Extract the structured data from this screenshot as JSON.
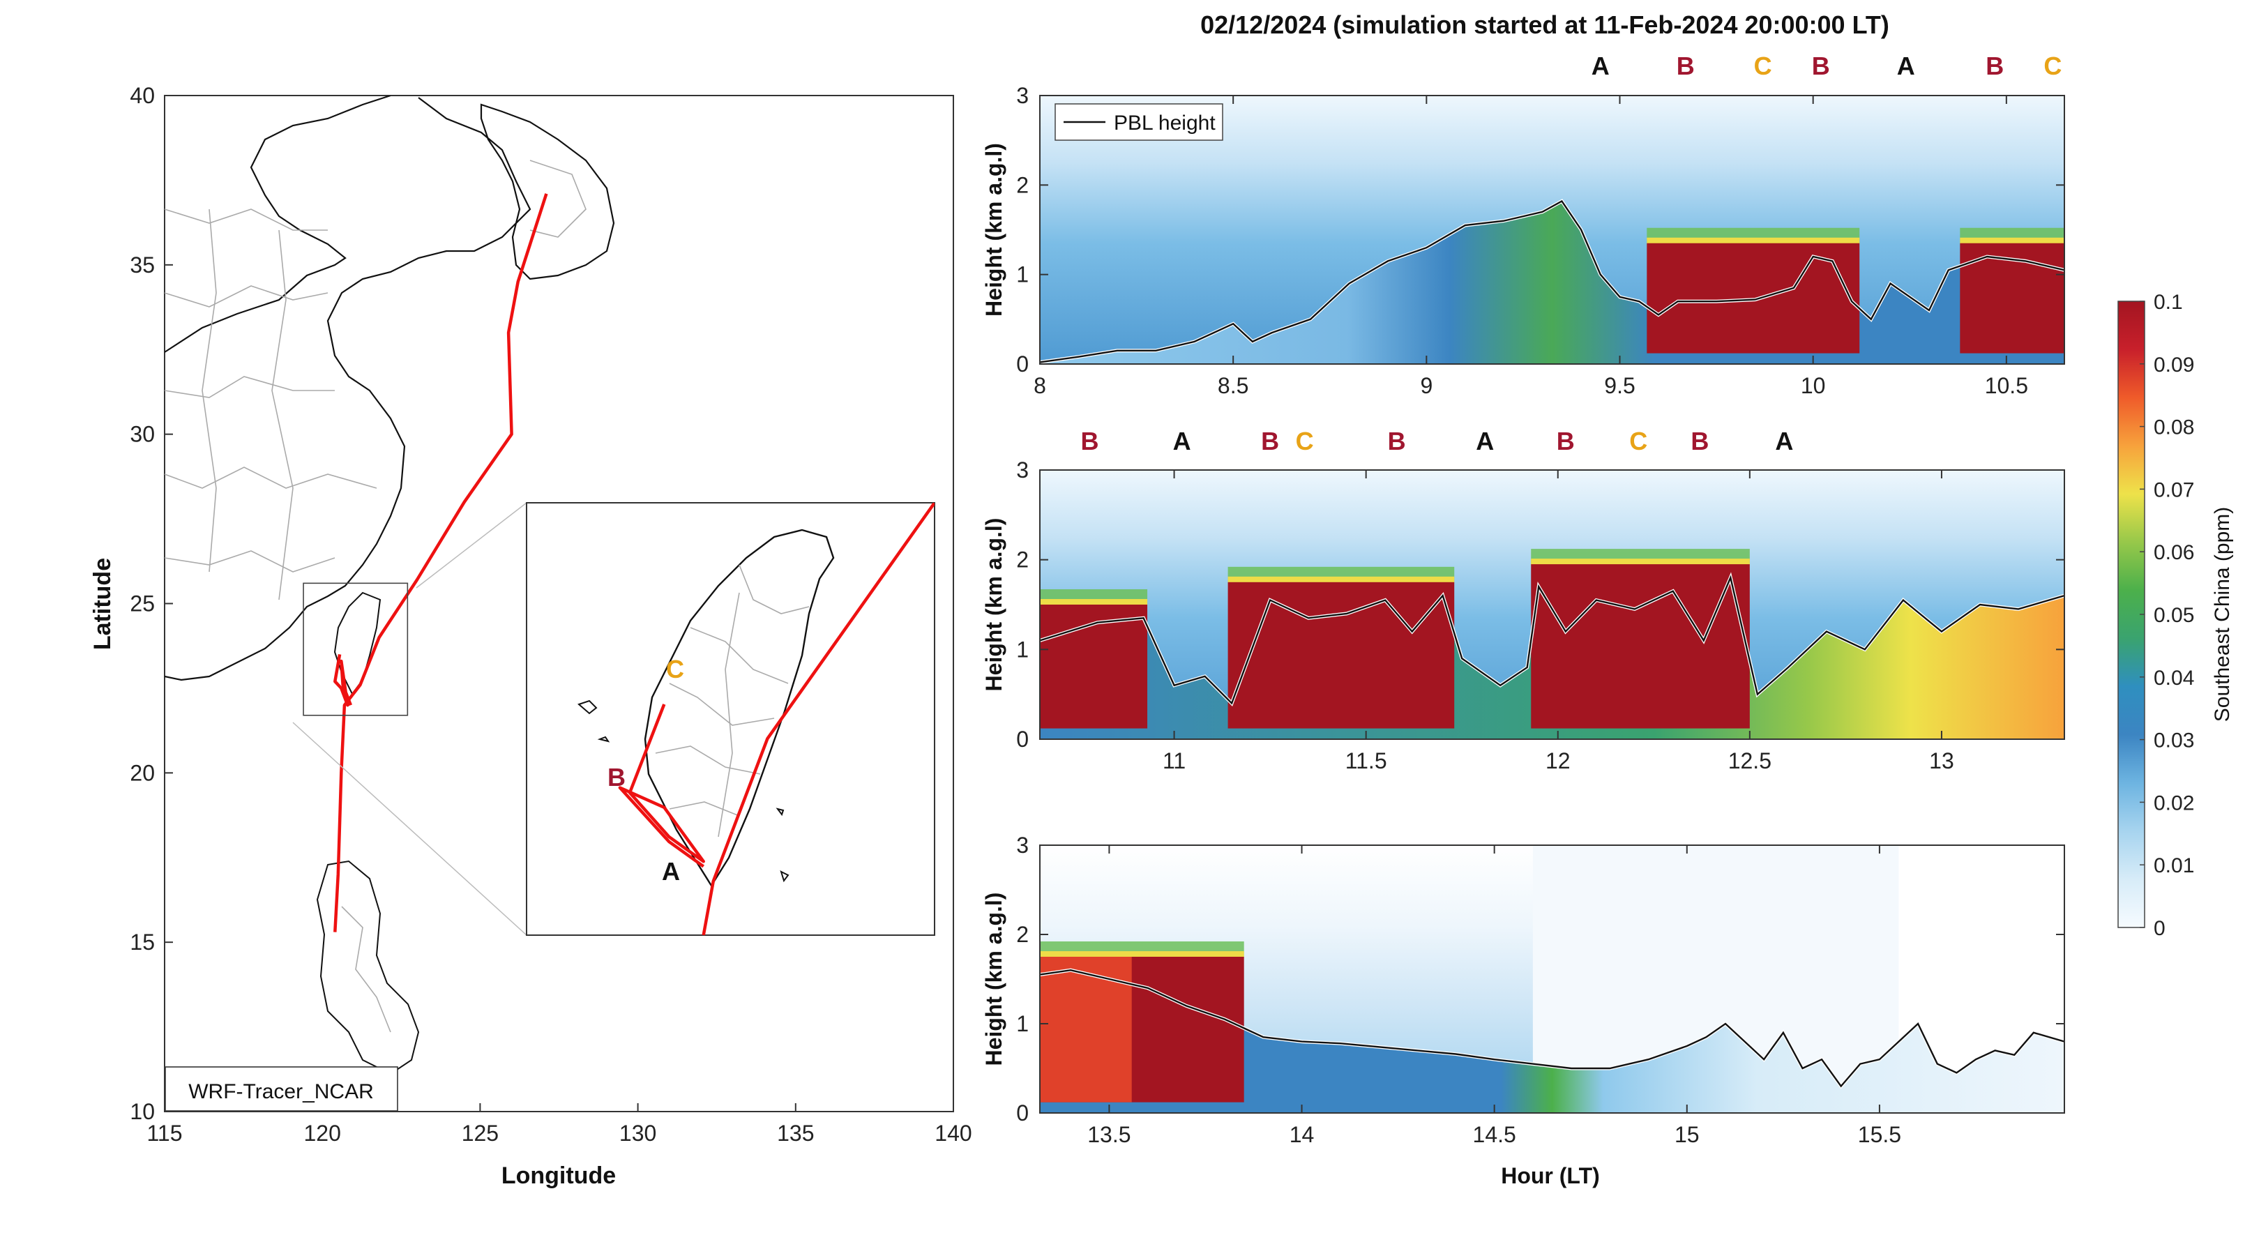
{
  "title": "02/12/2024 (simulation started at 11-Feb-2024 20:00:00 LT)",
  "colors": {
    "track": "#ee1111",
    "A": "#111111",
    "B": "#a0162f",
    "C": "#e8a317",
    "pbl": "#111111",
    "colormap": [
      "#f6fbff",
      "#d7ecf8",
      "#a7d4ef",
      "#6db4e1",
      "#3c85c2",
      "#2f8fbf",
      "#3aa36f",
      "#4cb04b",
      "#97c84a",
      "#eee24a",
      "#f7a23c",
      "#ef5b2a",
      "#c8202b",
      "#a31521"
    ]
  },
  "map": {
    "xlabel": "Longitude",
    "ylabel": "Latitude",
    "xlim": [
      115,
      140
    ],
    "ylim": [
      10,
      40
    ],
    "xticks": [
      "115",
      "120",
      "125",
      "130",
      "135",
      "140"
    ],
    "yticks": [
      "10",
      "15",
      "20",
      "25",
      "30",
      "35",
      "40"
    ],
    "model_label": "WRF-Tracer_NCAR",
    "flight_track": [
      [
        127.1,
        37.1
      ],
      [
        126.2,
        34.5
      ],
      [
        125.9,
        33.0
      ],
      [
        126.0,
        30.0
      ],
      [
        124.5,
        28.0
      ],
      [
        123.0,
        25.7
      ],
      [
        121.8,
        24.0
      ],
      [
        121.2,
        22.6
      ],
      [
        120.7,
        22.0
      ],
      [
        120.6,
        20.0
      ],
      [
        120.5,
        17.0
      ],
      [
        120.4,
        15.3
      ]
    ],
    "track_local": [
      [
        120.55,
        23.5
      ],
      [
        120.4,
        22.7
      ],
      [
        120.6,
        22.5
      ],
      [
        120.8,
        22.0
      ],
      [
        120.6,
        23.3
      ],
      [
        120.65,
        22.6
      ],
      [
        120.9,
        22.0
      ]
    ],
    "inset_box": [
      119.4,
      21.7,
      122.7,
      25.6
    ],
    "inset_labels": [
      {
        "text": "C",
        "tag": "C"
      },
      {
        "text": "B",
        "tag": "B"
      },
      {
        "text": "A",
        "tag": "A"
      }
    ]
  },
  "colorbar": {
    "label": "Southeast China (ppm)",
    "ticks": [
      "0",
      "0.01",
      "0.02",
      "0.03",
      "0.04",
      "0.05",
      "0.06",
      "0.07",
      "0.08",
      "0.09",
      "0.1"
    ]
  },
  "chart_data": [
    {
      "type": "heatmap",
      "panel": "top",
      "ylabel": "Height (km a.g.l)",
      "xlim": [
        8.0,
        10.65
      ],
      "ylim": [
        0,
        3
      ],
      "xticks": [
        "8",
        "8.5",
        "9",
        "9.5",
        "10",
        "10.5"
      ],
      "yticks": [
        "0",
        "1",
        "2",
        "3"
      ],
      "legend": "PBL height",
      "segment_labels": [
        {
          "text": "A",
          "x": 9.45
        },
        {
          "text": "B",
          "x": 9.67
        },
        {
          "text": "C",
          "x": 9.87
        },
        {
          "text": "B",
          "x": 10.02
        },
        {
          "text": "A",
          "x": 10.24
        },
        {
          "text": "B",
          "x": 10.47
        },
        {
          "text": "C",
          "x": 10.62
        }
      ],
      "pbl": {
        "x": [
          8.0,
          8.1,
          8.2,
          8.3,
          8.4,
          8.5,
          8.55,
          8.6,
          8.7,
          8.8,
          8.9,
          9.0,
          9.1,
          9.2,
          9.3,
          9.35,
          9.4,
          9.45,
          9.5,
          9.55,
          9.6,
          9.65,
          9.75,
          9.85,
          9.95,
          10.0,
          10.05,
          10.1,
          10.15,
          10.2,
          10.3,
          10.35,
          10.45,
          10.55,
          10.65
        ],
        "y": [
          0.02,
          0.08,
          0.15,
          0.15,
          0.25,
          0.45,
          0.25,
          0.35,
          0.5,
          0.9,
          1.15,
          1.3,
          1.55,
          1.6,
          1.7,
          1.82,
          1.5,
          1.0,
          0.75,
          0.7,
          0.55,
          0.7,
          0.7,
          0.72,
          0.85,
          1.2,
          1.15,
          0.7,
          0.5,
          0.9,
          0.6,
          1.05,
          1.2,
          1.15,
          1.05
        ]
      },
      "tracer_high": [
        [
          9.57,
          10.12
        ],
        [
          10.38,
          10.65
        ]
      ]
    },
    {
      "type": "heatmap",
      "panel": "middle",
      "ylabel": "Height (km a.g.l)",
      "xlim": [
        10.65,
        13.32
      ],
      "ylim": [
        0,
        3
      ],
      "xticks": [
        "11",
        "11.5",
        "12",
        "12.5",
        "13"
      ],
      "yticks": [
        "0",
        "1",
        "2",
        "3"
      ],
      "segment_labels": [
        {
          "text": "B",
          "x": 10.78
        },
        {
          "text": "A",
          "x": 11.02
        },
        {
          "text": "B",
          "x": 11.25
        },
        {
          "text": "C",
          "x": 11.34
        },
        {
          "text": "B",
          "x": 11.58
        },
        {
          "text": "A",
          "x": 11.81
        },
        {
          "text": "B",
          "x": 12.02
        },
        {
          "text": "C",
          "x": 12.21
        },
        {
          "text": "B",
          "x": 12.37
        },
        {
          "text": "A",
          "x": 12.59
        }
      ],
      "pbl": {
        "x": [
          10.65,
          10.8,
          10.92,
          11.0,
          11.08,
          11.15,
          11.25,
          11.35,
          11.45,
          11.55,
          11.62,
          11.7,
          11.75,
          11.85,
          11.92,
          11.95,
          12.02,
          12.1,
          12.2,
          12.3,
          12.38,
          12.45,
          12.52,
          12.6,
          12.7,
          12.8,
          12.9,
          13.0,
          13.1,
          13.2,
          13.32
        ],
        "y": [
          1.1,
          1.3,
          1.35,
          0.6,
          0.7,
          0.4,
          1.55,
          1.35,
          1.4,
          1.55,
          1.2,
          1.6,
          0.9,
          0.6,
          0.8,
          1.7,
          1.2,
          1.55,
          1.45,
          1.65,
          1.1,
          1.8,
          0.5,
          0.8,
          1.2,
          1.0,
          1.55,
          1.2,
          1.5,
          1.45,
          1.6
        ]
      },
      "tracer_high": [
        [
          10.65,
          10.93
        ],
        [
          11.14,
          11.73
        ],
        [
          11.93,
          12.5
        ]
      ]
    },
    {
      "type": "heatmap",
      "panel": "bottom",
      "ylabel": "Height (km a.g.l)",
      "xlabel": "Hour (LT)",
      "xlim": [
        13.32,
        15.98
      ],
      "ylim": [
        0,
        3
      ],
      "xticks": [
        "13.5",
        "14",
        "14.5",
        "15",
        "15.5"
      ],
      "yticks": [
        "0",
        "1",
        "2",
        "3"
      ],
      "pbl": {
        "x": [
          13.32,
          13.4,
          13.5,
          13.6,
          13.7,
          13.8,
          13.9,
          14.0,
          14.1,
          14.2,
          14.3,
          14.4,
          14.5,
          14.6,
          14.7,
          14.8,
          14.9,
          15.0,
          15.05,
          15.1,
          15.15,
          15.2,
          15.25,
          15.3,
          15.35,
          15.4,
          15.45,
          15.5,
          15.55,
          15.6,
          15.65,
          15.7,
          15.75,
          15.8,
          15.85,
          15.9,
          15.98
        ],
        "y": [
          1.55,
          1.6,
          1.5,
          1.4,
          1.2,
          1.05,
          0.85,
          0.8,
          0.78,
          0.74,
          0.7,
          0.66,
          0.6,
          0.55,
          0.5,
          0.5,
          0.6,
          0.75,
          0.85,
          1.0,
          0.8,
          0.6,
          0.9,
          0.5,
          0.6,
          0.3,
          0.55,
          0.6,
          0.8,
          1.0,
          0.55,
          0.45,
          0.6,
          0.7,
          0.65,
          0.9,
          0.8
        ]
      },
      "tracer_high": [
        [
          13.32,
          13.85
        ]
      ]
    }
  ]
}
